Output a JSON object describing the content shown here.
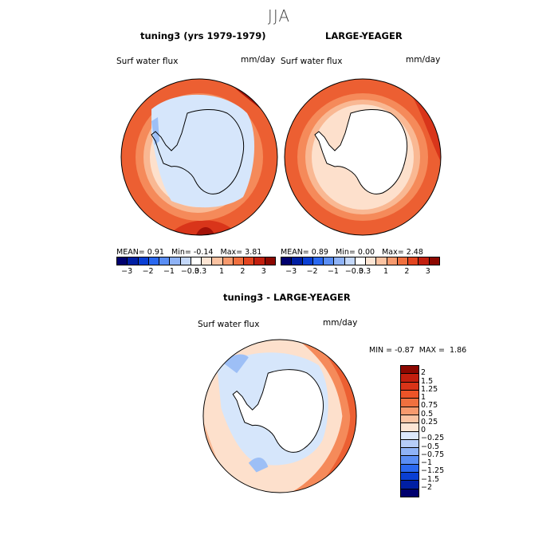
{
  "figure": {
    "season": "JJA"
  },
  "panels": {
    "model": {
      "title": "tuning3 (yrs 1979-1979)",
      "variable": "Surf water flux",
      "units": "mm/day",
      "stats": {
        "mean_label": "MEAN=",
        "mean": "0.91",
        "min_label": "Min=",
        "min": "-0.14",
        "max_label": "Max=",
        "max": "3.81"
      }
    },
    "obs": {
      "title": "LARGE-YEAGER",
      "variable": "Surf water flux",
      "units": "mm/day",
      "stats": {
        "mean_label": "MEAN=",
        "mean": "0.89",
        "min_label": "Min=",
        "min": "0.00",
        "max_label": "Max=",
        "max": "2.48"
      }
    },
    "diff": {
      "title": "tuning3 - LARGE-YEAGER",
      "variable": "Surf water flux",
      "units": "mm/day",
      "stats": {
        "min_label": "MIN =",
        "min": "-0.87",
        "max_label": "MAX =",
        "max": "1.86"
      }
    }
  },
  "colorbars": {
    "top": {
      "ticks": [
        "-3",
        "-2",
        "-1",
        "-0.3",
        "0.3",
        "1",
        "2",
        "3"
      ],
      "colors": [
        "#00006e",
        "#001fa3",
        "#0a3fd4",
        "#2a68f0",
        "#5a8ef5",
        "#8fb3f7",
        "#c4d8fa",
        "#ffffff",
        "#fde5d4",
        "#fbc3a2",
        "#f79a6e",
        "#f0703f",
        "#e34520",
        "#c21f0e",
        "#8c0800"
      ]
    },
    "diff": {
      "labels": [
        "2",
        "1.5",
        "1.25",
        "1",
        "0.75",
        "0.5",
        "0.25",
        "0",
        "-0.25",
        "-0.5",
        "-0.75",
        "-1",
        "-1.25",
        "-1.5",
        "-2"
      ],
      "colors": [
        "#8c0800",
        "#c21f0e",
        "#d93418",
        "#ec5428",
        "#f0703f",
        "#f79a6e",
        "#fbc3a2",
        "#fde5d4",
        "#dbe8fc",
        "#b6cdf8",
        "#8fb3f7",
        "#5a8ef5",
        "#2a68f0",
        "#0a3fd4",
        "#001fa3",
        "#00006e"
      ]
    }
  },
  "map_colors": {
    "strong_red": "#d9351a",
    "red": "#ec5f32",
    "orange": "#f58a5a",
    "salmon": "#f9b893",
    "peach": "#fde0cc",
    "light_blue": "#d6e6fb",
    "blue": "#9dbff6",
    "dark_red": "#a31208"
  }
}
